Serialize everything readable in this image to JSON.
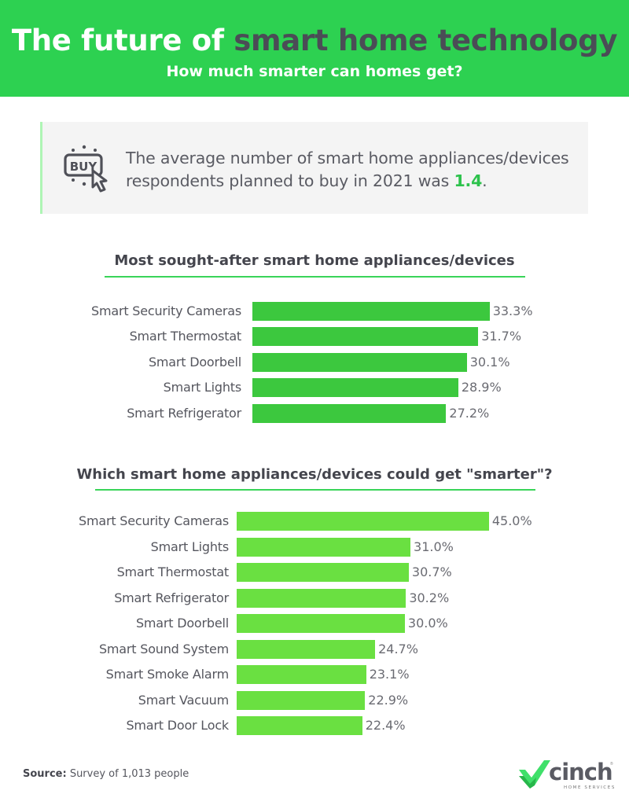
{
  "header": {
    "title_part1": "The future of ",
    "title_part2": "smart home technology",
    "subtitle": "How much smarter can homes get?",
    "background_color": "#2dd151"
  },
  "callout": {
    "icon": "buy-click-icon",
    "icon_text": "BUY",
    "line1": "The average number of smart home appliances/devices",
    "line2_prefix": "respondents planned to buy in 2021 was ",
    "highlight": "1.4",
    "line2_suffix": "."
  },
  "chart_data": [
    {
      "type": "bar",
      "orientation": "horizontal",
      "title": "Most sought-after smart home appliances/devices",
      "categories": [
        "Smart Security Cameras",
        "Smart Thermostat",
        "Smart Doorbell",
        "Smart Lights",
        "Smart Refrigerator"
      ],
      "values": [
        33.3,
        31.7,
        30.1,
        28.9,
        27.2
      ],
      "value_labels": [
        "33.3%",
        "31.7%",
        "30.1%",
        "28.9%",
        "27.2%"
      ],
      "unit": "%",
      "bar_color": "#3cc83e",
      "xlabel": "",
      "ylabel": "",
      "grid": false,
      "legend": "none"
    },
    {
      "type": "bar",
      "orientation": "horizontal",
      "title": "Which smart home appliances/devices could get \"smarter\"?",
      "categories": [
        "Smart Security Cameras",
        "Smart Lights",
        "Smart Thermostat",
        "Smart Refrigerator",
        "Smart Doorbell",
        "Smart Sound System",
        "Smart Smoke Alarm",
        "Smart Vacuum",
        "Smart Door Lock"
      ],
      "values": [
        45.0,
        31.0,
        30.7,
        30.2,
        30.0,
        24.7,
        23.1,
        22.9,
        22.4
      ],
      "value_labels": [
        "45.0%",
        "31.0%",
        "30.7%",
        "30.2%",
        "30.0%",
        "24.7%",
        "23.1%",
        "22.9%",
        "22.4%"
      ],
      "unit": "%",
      "bar_color": "#6ae041",
      "xlabel": "",
      "ylabel": "",
      "grid": false,
      "legend": "none"
    }
  ],
  "footer": {
    "source_label": "Source:",
    "source_text": " Survey of 1,013 people",
    "logo_word": "cinch",
    "logo_reg": "®",
    "logo_sub": "HOME SERVICES"
  }
}
